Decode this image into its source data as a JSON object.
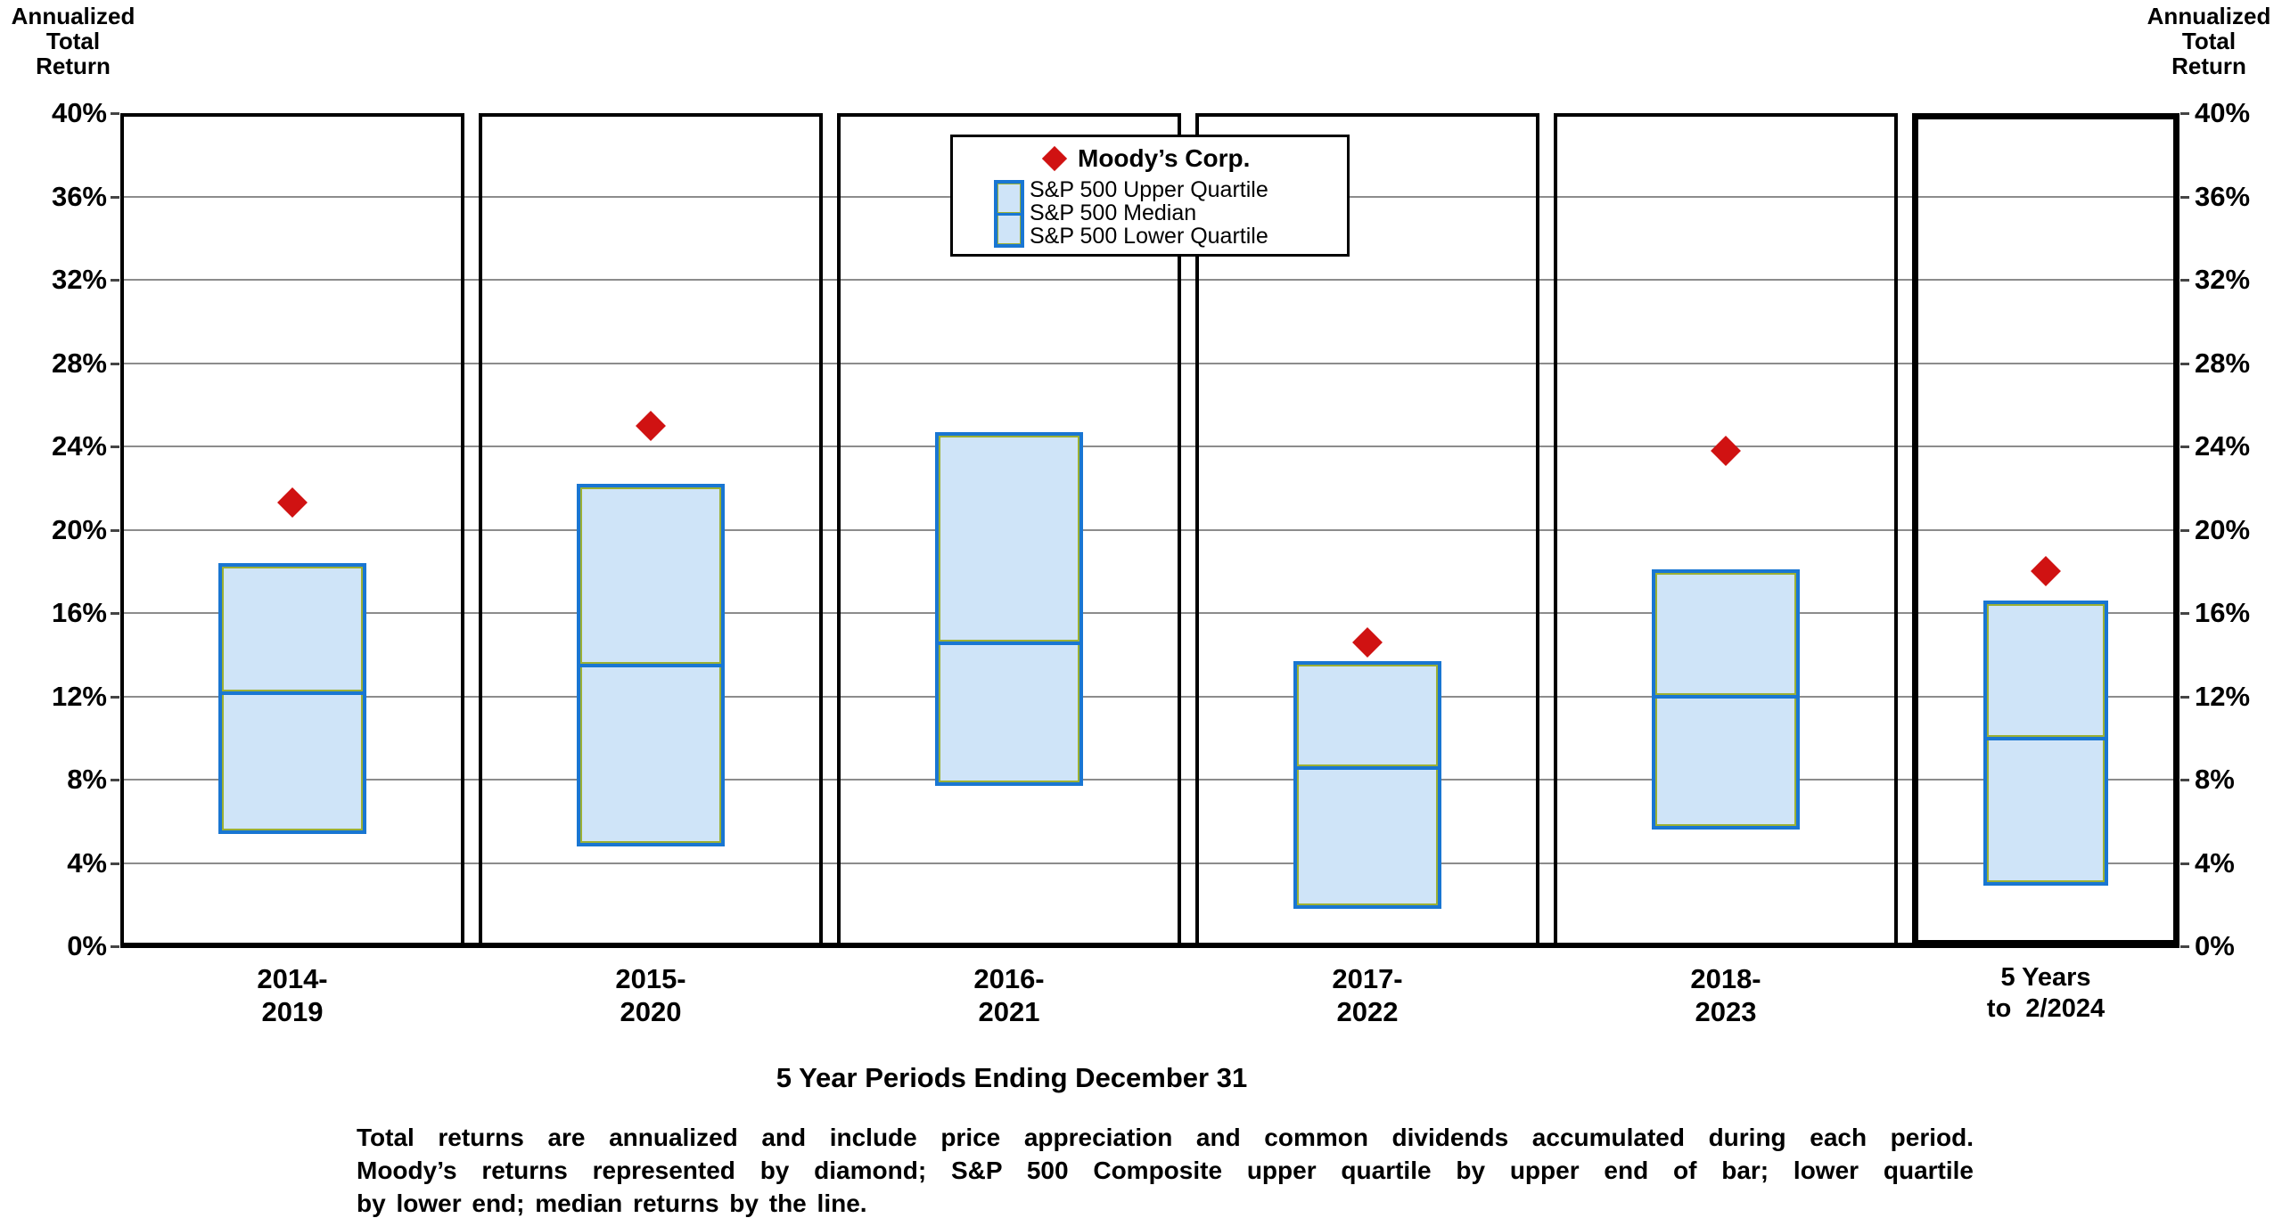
{
  "axis_title_left": "Annualized\nTotal\nReturn",
  "axis_title_right": "Annualized\nTotal\nReturn",
  "x_axis_title": "5 Year Periods Ending December 31",
  "legend": {
    "moody_label": "Moody’s Corp.",
    "sp500_labels": "S&P 500 Upper Quartile\nS&P 500 Median\nS&P 500 Lower Quartile"
  },
  "footnote": {
    "line1": "Total returns are annualized and include price appreciation and common dividends accumulated during each period.",
    "line2": "Moody’s returns represented by diamond; S&P 500 Composite upper quartile by upper end of bar; lower quartile",
    "line3": "by lower end; median returns by the line."
  },
  "colors": {
    "moody_diamond": "#d01212",
    "box_fill": "#cfe4f8",
    "box_border": "#1976d2",
    "box_inner_outline": "#9cb033",
    "gridline": "#8c8c8c",
    "frame": "#000000"
  },
  "chart_data": {
    "type": "box",
    "title": "",
    "ylabel": "Annualized Total Return",
    "xlabel": "5 Year Periods Ending December 31",
    "ylim": [
      0,
      40
    ],
    "y_tick_step": 4,
    "y_tick_labels_top_down": [
      "40%",
      "36%",
      "32%",
      "28%",
      "24%",
      "20%",
      "16%",
      "12%",
      "8%",
      "4%",
      "0%"
    ],
    "grid": true,
    "legend_position": "top-center",
    "legend_entries": [
      "Moody’s Corp.",
      "S&P 500 Upper Quartile",
      "S&P 500 Median",
      "S&P 500 Lower Quartile"
    ],
    "series_note": "Each box spans S&P 500 lower quartile to upper quartile with median line; red diamond marks Moody’s Corp. annualized total return (%). Values in percent.",
    "periods": [
      {
        "label": "2014-\n2019",
        "moody": 21.3,
        "upper_quartile": 18.4,
        "median": 12.2,
        "lower_quartile": 5.4,
        "highlight": false
      },
      {
        "label": "2015-\n2020",
        "moody": 25.0,
        "upper_quartile": 22.2,
        "median": 13.5,
        "lower_quartile": 4.8,
        "highlight": false
      },
      {
        "label": "2016-\n2021",
        "moody": null,
        "upper_quartile": 24.7,
        "median": 14.6,
        "lower_quartile": 7.7,
        "highlight": false
      },
      {
        "label": "2017-\n2022",
        "moody": 14.6,
        "upper_quartile": 13.7,
        "median": 8.6,
        "lower_quartile": 1.8,
        "highlight": false
      },
      {
        "label": "2018-\n2023",
        "moody": 23.8,
        "upper_quartile": 18.1,
        "median": 12.0,
        "lower_quartile": 5.6,
        "highlight": false
      },
      {
        "label": "5 Years\nto  2/2024",
        "moody": 18.0,
        "upper_quartile": 16.6,
        "median": 10.0,
        "lower_quartile": 2.9,
        "highlight": true
      }
    ]
  }
}
